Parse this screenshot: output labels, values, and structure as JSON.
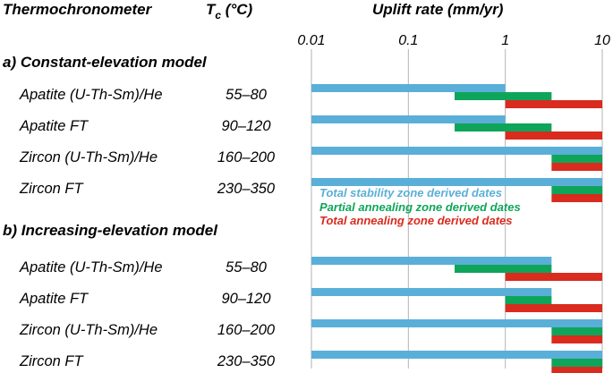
{
  "header": {
    "col1": "Thermochronometer",
    "col2_main": "T",
    "col2_sub": "c",
    "col2_unit": " (°C)",
    "col3": "Uplift rate (mm/yr)"
  },
  "colors": {
    "total_stability": "#5aafd8",
    "partial_annealing": "#0ea55a",
    "total_annealing": "#d92b1e",
    "grid": "#b3b3b3",
    "text": "#231f20"
  },
  "chart_data": {
    "type": "bar",
    "subtype": "horizontal range bars",
    "xlabel": "Uplift rate (mm/yr)",
    "xscale": "log",
    "xlim": [
      0.01,
      10
    ],
    "ticks": [
      {
        "value": 0.01,
        "label": "0.01"
      },
      {
        "value": 0.1,
        "label": "0.1"
      },
      {
        "value": 1,
        "label": "1"
      },
      {
        "value": 10,
        "label": "10"
      }
    ],
    "grid": true,
    "series": [
      {
        "key": "stability",
        "name": "Total stability zone derived dates",
        "color": "#5aafd8"
      },
      {
        "key": "partial",
        "name": "Partial annealing zone derived dates",
        "color": "#0ea55a"
      },
      {
        "key": "annealing",
        "name": "Total annealing zone derived dates",
        "color": "#d92b1e"
      }
    ],
    "legend_position": "inside, middle-left of plot",
    "sections": [
      {
        "label": "a) Constant-elevation model",
        "rows": [
          {
            "name": "Apatite (U-Th-Sm)/He",
            "tc": "55–80",
            "stability": [
              0.01,
              1
            ],
            "partial": [
              0.3,
              3
            ],
            "annealing": [
              1,
              10
            ]
          },
          {
            "name": "Apatite FT",
            "tc": "90–120",
            "stability": [
              0.01,
              1
            ],
            "partial": [
              0.3,
              3
            ],
            "annealing": [
              1,
              10
            ]
          },
          {
            "name": "Zircon (U-Th-Sm)/He",
            "tc": "160–200",
            "stability": [
              0.01,
              10
            ],
            "partial": [
              3,
              10
            ],
            "annealing": [
              3,
              10
            ]
          },
          {
            "name": "Zircon FT",
            "tc": "230–350",
            "stability": [
              0.01,
              10
            ],
            "partial": [
              3,
              10
            ],
            "annealing": [
              3,
              10
            ]
          }
        ]
      },
      {
        "label": "b) Increasing-elevation model",
        "rows": [
          {
            "name": "Apatite (U-Th-Sm)/He",
            "tc": "55–80",
            "stability": [
              0.01,
              3
            ],
            "partial": [
              0.3,
              3
            ],
            "annealing": [
              1,
              10
            ]
          },
          {
            "name": "Apatite FT",
            "tc": "90–120",
            "stability": [
              0.01,
              3
            ],
            "partial": [
              1,
              3
            ],
            "annealing": [
              1,
              10
            ]
          },
          {
            "name": "Zircon (U-Th-Sm)/He",
            "tc": "160–200",
            "stability": [
              0.01,
              10
            ],
            "partial": [
              3,
              10
            ],
            "annealing": [
              3,
              10
            ]
          },
          {
            "name": "Zircon FT",
            "tc": "230–350",
            "stability": [
              0.01,
              10
            ],
            "partial": [
              3,
              10
            ],
            "annealing": [
              3,
              10
            ]
          }
        ]
      }
    ]
  }
}
